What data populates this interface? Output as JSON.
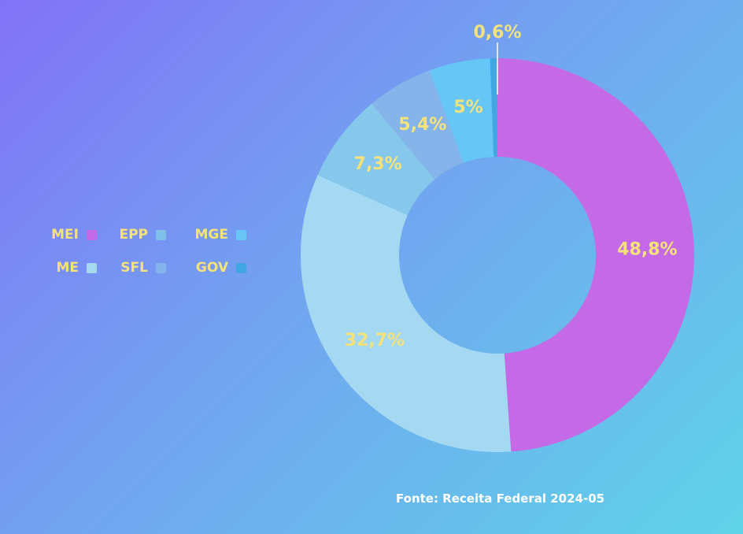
{
  "chart_data": {
    "type": "pie",
    "donut": true,
    "categories": [
      "MEI",
      "ME",
      "EPP",
      "SFL",
      "MGE",
      "GOV"
    ],
    "values": [
      48.8,
      32.7,
      7.3,
      5.4,
      5.0,
      0.6
    ],
    "labels": [
      "48,8%",
      "32,7%",
      "7,3%",
      "5,4%",
      "5%",
      "0,6%"
    ],
    "colors": [
      "#c56ae6",
      "#a5d9f2",
      "#85c8ec",
      "#84b4ea",
      "#66c7f6",
      "#42a6e2"
    ],
    "legend_position": "left",
    "legend": [
      {
        "label": "MEI",
        "color": "#c56ae6"
      },
      {
        "label": "EPP",
        "color": "#7fbfea"
      },
      {
        "label": "MGE",
        "color": "#6ac5f6"
      },
      {
        "label": "ME",
        "color": "#a5d9f2"
      },
      {
        "label": "SFL",
        "color": "#84b4ea"
      },
      {
        "label": "GOV",
        "color": "#42a6e2"
      }
    ]
  },
  "source": "Fonte: Receita Federal 2024-05"
}
